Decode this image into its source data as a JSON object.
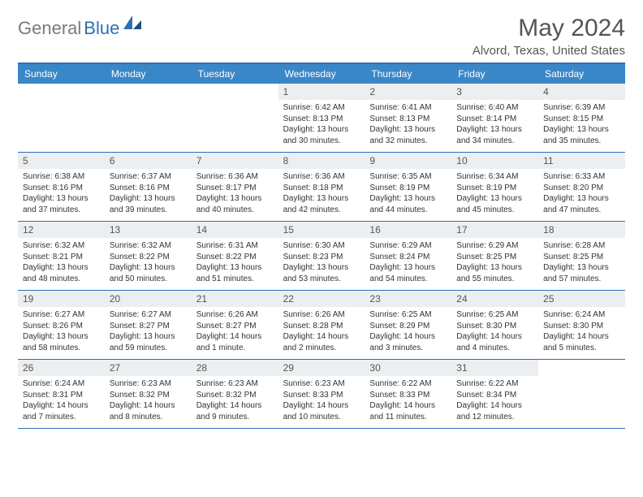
{
  "brand": {
    "part1": "General",
    "part2": "Blue"
  },
  "title": "May 2024",
  "location": "Alvord, Texas, United States",
  "colors": {
    "header_bar": "#3a87c8",
    "border": "#2c6fb5",
    "daynum_bg": "#eceff1",
    "logo_gray": "#7a7a7a",
    "logo_blue": "#2c6fb5",
    "text": "#333333",
    "title_gray": "#555555"
  },
  "day_headers": [
    "Sunday",
    "Monday",
    "Tuesday",
    "Wednesday",
    "Thursday",
    "Friday",
    "Saturday"
  ],
  "weeks": [
    [
      {
        "n": "",
        "sr": "",
        "ss": "",
        "dl": ""
      },
      {
        "n": "",
        "sr": "",
        "ss": "",
        "dl": ""
      },
      {
        "n": "",
        "sr": "",
        "ss": "",
        "dl": ""
      },
      {
        "n": "1",
        "sr": "Sunrise: 6:42 AM",
        "ss": "Sunset: 8:13 PM",
        "dl": "Daylight: 13 hours and 30 minutes."
      },
      {
        "n": "2",
        "sr": "Sunrise: 6:41 AM",
        "ss": "Sunset: 8:13 PM",
        "dl": "Daylight: 13 hours and 32 minutes."
      },
      {
        "n": "3",
        "sr": "Sunrise: 6:40 AM",
        "ss": "Sunset: 8:14 PM",
        "dl": "Daylight: 13 hours and 34 minutes."
      },
      {
        "n": "4",
        "sr": "Sunrise: 6:39 AM",
        "ss": "Sunset: 8:15 PM",
        "dl": "Daylight: 13 hours and 35 minutes."
      }
    ],
    [
      {
        "n": "5",
        "sr": "Sunrise: 6:38 AM",
        "ss": "Sunset: 8:16 PM",
        "dl": "Daylight: 13 hours and 37 minutes."
      },
      {
        "n": "6",
        "sr": "Sunrise: 6:37 AM",
        "ss": "Sunset: 8:16 PM",
        "dl": "Daylight: 13 hours and 39 minutes."
      },
      {
        "n": "7",
        "sr": "Sunrise: 6:36 AM",
        "ss": "Sunset: 8:17 PM",
        "dl": "Daylight: 13 hours and 40 minutes."
      },
      {
        "n": "8",
        "sr": "Sunrise: 6:36 AM",
        "ss": "Sunset: 8:18 PM",
        "dl": "Daylight: 13 hours and 42 minutes."
      },
      {
        "n": "9",
        "sr": "Sunrise: 6:35 AM",
        "ss": "Sunset: 8:19 PM",
        "dl": "Daylight: 13 hours and 44 minutes."
      },
      {
        "n": "10",
        "sr": "Sunrise: 6:34 AM",
        "ss": "Sunset: 8:19 PM",
        "dl": "Daylight: 13 hours and 45 minutes."
      },
      {
        "n": "11",
        "sr": "Sunrise: 6:33 AM",
        "ss": "Sunset: 8:20 PM",
        "dl": "Daylight: 13 hours and 47 minutes."
      }
    ],
    [
      {
        "n": "12",
        "sr": "Sunrise: 6:32 AM",
        "ss": "Sunset: 8:21 PM",
        "dl": "Daylight: 13 hours and 48 minutes."
      },
      {
        "n": "13",
        "sr": "Sunrise: 6:32 AM",
        "ss": "Sunset: 8:22 PM",
        "dl": "Daylight: 13 hours and 50 minutes."
      },
      {
        "n": "14",
        "sr": "Sunrise: 6:31 AM",
        "ss": "Sunset: 8:22 PM",
        "dl": "Daylight: 13 hours and 51 minutes."
      },
      {
        "n": "15",
        "sr": "Sunrise: 6:30 AM",
        "ss": "Sunset: 8:23 PM",
        "dl": "Daylight: 13 hours and 53 minutes."
      },
      {
        "n": "16",
        "sr": "Sunrise: 6:29 AM",
        "ss": "Sunset: 8:24 PM",
        "dl": "Daylight: 13 hours and 54 minutes."
      },
      {
        "n": "17",
        "sr": "Sunrise: 6:29 AM",
        "ss": "Sunset: 8:25 PM",
        "dl": "Daylight: 13 hours and 55 minutes."
      },
      {
        "n": "18",
        "sr": "Sunrise: 6:28 AM",
        "ss": "Sunset: 8:25 PM",
        "dl": "Daylight: 13 hours and 57 minutes."
      }
    ],
    [
      {
        "n": "19",
        "sr": "Sunrise: 6:27 AM",
        "ss": "Sunset: 8:26 PM",
        "dl": "Daylight: 13 hours and 58 minutes."
      },
      {
        "n": "20",
        "sr": "Sunrise: 6:27 AM",
        "ss": "Sunset: 8:27 PM",
        "dl": "Daylight: 13 hours and 59 minutes."
      },
      {
        "n": "21",
        "sr": "Sunrise: 6:26 AM",
        "ss": "Sunset: 8:27 PM",
        "dl": "Daylight: 14 hours and 1 minute."
      },
      {
        "n": "22",
        "sr": "Sunrise: 6:26 AM",
        "ss": "Sunset: 8:28 PM",
        "dl": "Daylight: 14 hours and 2 minutes."
      },
      {
        "n": "23",
        "sr": "Sunrise: 6:25 AM",
        "ss": "Sunset: 8:29 PM",
        "dl": "Daylight: 14 hours and 3 minutes."
      },
      {
        "n": "24",
        "sr": "Sunrise: 6:25 AM",
        "ss": "Sunset: 8:30 PM",
        "dl": "Daylight: 14 hours and 4 minutes."
      },
      {
        "n": "25",
        "sr": "Sunrise: 6:24 AM",
        "ss": "Sunset: 8:30 PM",
        "dl": "Daylight: 14 hours and 5 minutes."
      }
    ],
    [
      {
        "n": "26",
        "sr": "Sunrise: 6:24 AM",
        "ss": "Sunset: 8:31 PM",
        "dl": "Daylight: 14 hours and 7 minutes."
      },
      {
        "n": "27",
        "sr": "Sunrise: 6:23 AM",
        "ss": "Sunset: 8:32 PM",
        "dl": "Daylight: 14 hours and 8 minutes."
      },
      {
        "n": "28",
        "sr": "Sunrise: 6:23 AM",
        "ss": "Sunset: 8:32 PM",
        "dl": "Daylight: 14 hours and 9 minutes."
      },
      {
        "n": "29",
        "sr": "Sunrise: 6:23 AM",
        "ss": "Sunset: 8:33 PM",
        "dl": "Daylight: 14 hours and 10 minutes."
      },
      {
        "n": "30",
        "sr": "Sunrise: 6:22 AM",
        "ss": "Sunset: 8:33 PM",
        "dl": "Daylight: 14 hours and 11 minutes."
      },
      {
        "n": "31",
        "sr": "Sunrise: 6:22 AM",
        "ss": "Sunset: 8:34 PM",
        "dl": "Daylight: 14 hours and 12 minutes."
      },
      {
        "n": "",
        "sr": "",
        "ss": "",
        "dl": ""
      }
    ]
  ]
}
